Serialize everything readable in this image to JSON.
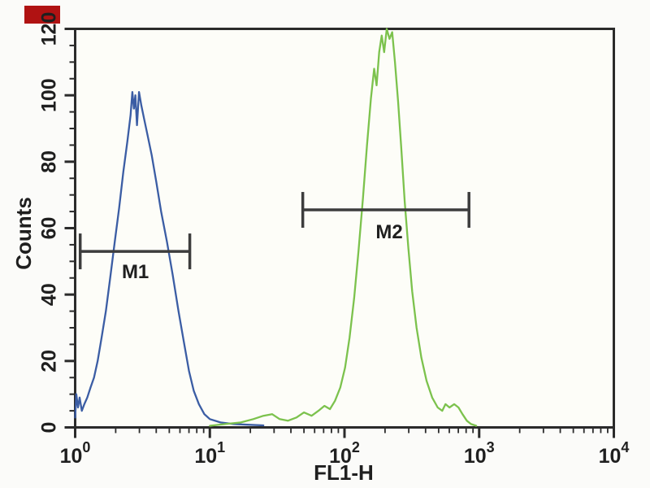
{
  "page": {
    "background": "#fbfbf9"
  },
  "decorations": {
    "corner_mark_color": "#b01212"
  },
  "chart_data": {
    "type": "line",
    "subtype": "flow-cytometry-histogram",
    "title": "",
    "xlabel": "FL1-H",
    "ylabel": "Counts",
    "x_scale": "log",
    "xlim": [
      1,
      10000
    ],
    "ylim": [
      0,
      120
    ],
    "yticks": [
      0,
      20,
      40,
      60,
      80,
      100,
      120
    ],
    "y_minor_step": 5,
    "xtick_base": "10",
    "xtick_exponents": [
      0,
      1,
      2,
      3,
      4
    ],
    "grid": false,
    "frame_color": "#2b2b2b",
    "legend": "none",
    "series": [
      {
        "name": "blue",
        "color": "#3b5da4",
        "points": [
          [
            1.0,
            3
          ],
          [
            1.02,
            10
          ],
          [
            1.05,
            6
          ],
          [
            1.08,
            9
          ],
          [
            1.12,
            5
          ],
          [
            1.17,
            7
          ],
          [
            1.23,
            9
          ],
          [
            1.3,
            12
          ],
          [
            1.38,
            15
          ],
          [
            1.47,
            20
          ],
          [
            1.57,
            27
          ],
          [
            1.69,
            35
          ],
          [
            1.82,
            45
          ],
          [
            1.97,
            56
          ],
          [
            2.12,
            66
          ],
          [
            2.28,
            77
          ],
          [
            2.44,
            86
          ],
          [
            2.58,
            94
          ],
          [
            2.66,
            101
          ],
          [
            2.73,
            96
          ],
          [
            2.8,
            100
          ],
          [
            2.88,
            91
          ],
          [
            2.98,
            101
          ],
          [
            3.1,
            97
          ],
          [
            3.25,
            93
          ],
          [
            3.45,
            88
          ],
          [
            3.7,
            82
          ],
          [
            4.0,
            74
          ],
          [
            4.35,
            65
          ],
          [
            4.8,
            56
          ],
          [
            5.3,
            46
          ],
          [
            5.85,
            35
          ],
          [
            6.4,
            26
          ],
          [
            7.0,
            17
          ],
          [
            7.6,
            11
          ],
          [
            8.3,
            7
          ],
          [
            9.1,
            4
          ],
          [
            10.0,
            2.5
          ],
          [
            12.0,
            1.5
          ],
          [
            15.0,
            1
          ],
          [
            19.0,
            0.8
          ],
          [
            25.0,
            0.6
          ]
        ]
      },
      {
        "name": "green",
        "color": "#7cc24d",
        "points": [
          [
            10,
            0.5
          ],
          [
            13,
            1
          ],
          [
            17,
            1.5
          ],
          [
            21,
            2.5
          ],
          [
            25,
            3.5
          ],
          [
            29,
            4
          ],
          [
            33,
            2.5
          ],
          [
            38,
            2
          ],
          [
            44,
            3
          ],
          [
            50,
            4.5
          ],
          [
            57,
            3.5
          ],
          [
            64,
            5
          ],
          [
            71,
            6.5
          ],
          [
            78,
            5.5
          ],
          [
            85,
            8
          ],
          [
            93,
            12
          ],
          [
            101,
            18
          ],
          [
            109,
            27
          ],
          [
            118,
            39
          ],
          [
            127,
            53
          ],
          [
            137,
            69
          ],
          [
            147,
            85
          ],
          [
            157,
            99
          ],
          [
            166,
            108
          ],
          [
            173,
            103
          ],
          [
            181,
            113
          ],
          [
            189,
            118
          ],
          [
            197,
            113
          ],
          [
            206,
            120
          ],
          [
            216,
            117
          ],
          [
            226,
            119
          ],
          [
            237,
            110
          ],
          [
            250,
            98
          ],
          [
            264,
            84
          ],
          [
            280,
            68
          ],
          [
            298,
            54
          ],
          [
            318,
            41
          ],
          [
            343,
            30
          ],
          [
            372,
            21
          ],
          [
            407,
            14
          ],
          [
            448,
            9
          ],
          [
            492,
            6
          ],
          [
            532,
            5
          ],
          [
            562,
            7
          ],
          [
            602,
            6
          ],
          [
            652,
            7
          ],
          [
            702,
            6
          ],
          [
            752,
            4
          ],
          [
            810,
            2
          ],
          [
            870,
            1
          ],
          [
            950,
            0.5
          ]
        ]
      }
    ],
    "markers": [
      {
        "label": "M1",
        "y": 53,
        "x_from": 1.09,
        "x_to": 7.1,
        "label_x": 2.8,
        "label_y": 45,
        "color": "#3d3d3d"
      },
      {
        "label": "M2",
        "y": 65.5,
        "x_from": 49,
        "x_to": 840,
        "label_x": 215,
        "label_y": 57,
        "color": "#3d3d3d"
      }
    ]
  }
}
